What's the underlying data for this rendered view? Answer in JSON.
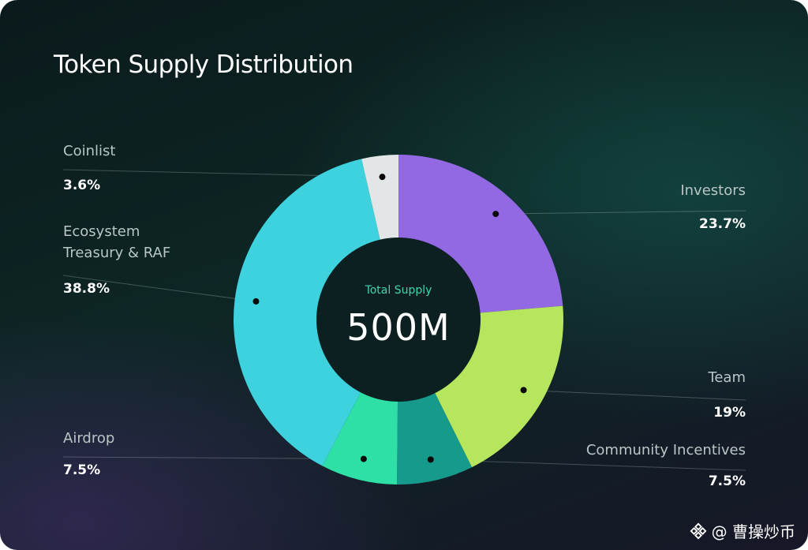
{
  "title": "Token Supply Distribution",
  "center": {
    "caption": "Total Supply",
    "value": "500M"
  },
  "watermark": {
    "text": "@ 曹操炒币",
    "icon": "binance-logo-icon"
  },
  "chart_data": {
    "type": "pie",
    "title": "Token Supply Distribution",
    "total_label": "500M",
    "slices": [
      {
        "name": "Investors",
        "value": 23.7,
        "label": "23.7%",
        "color": "#9369e3"
      },
      {
        "name": "Team",
        "value": 19,
        "label": "19%",
        "color": "#b5e65e"
      },
      {
        "name": "Community Incentives",
        "value": 7.5,
        "label": "7.5%",
        "color": "#169a8b"
      },
      {
        "name": "Airdrop",
        "value": 7.5,
        "label": "7.5%",
        "color": "#2fe0a6"
      },
      {
        "name": "Ecosystem Treasury & RAF",
        "value": 38.8,
        "label": "38.8%",
        "color": "#3dd2de"
      },
      {
        "name": "Coinlist",
        "value": 3.6,
        "label": "3.6%",
        "color": "#e3e6e6"
      }
    ]
  }
}
